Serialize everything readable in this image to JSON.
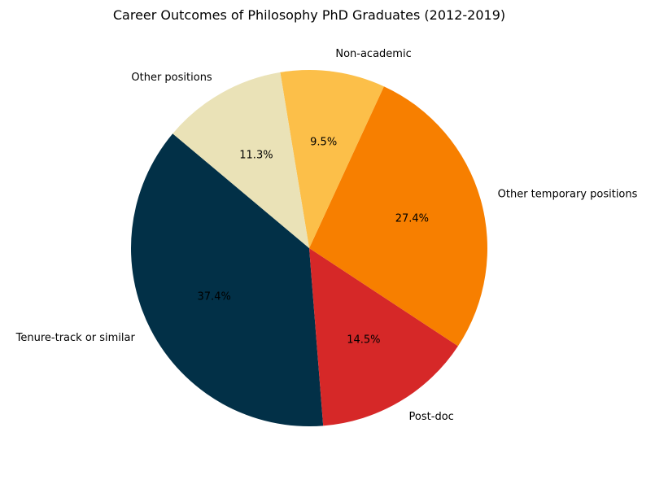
{
  "chart_data": {
    "type": "pie",
    "title": "Career Outcomes of Philosophy PhD Graduates (2012-2019)",
    "start_angle_deg": 140,
    "counterclock": true,
    "slices": [
      {
        "label": "Tenure-track or similar",
        "value": 37.4,
        "pct_label": "37.4%",
        "color": "#023047"
      },
      {
        "label": "Post-doc",
        "value": 14.5,
        "pct_label": "14.5%",
        "color": "#d62828"
      },
      {
        "label": "Other temporary positions",
        "value": 27.4,
        "pct_label": "27.4%",
        "color": "#f77f00"
      },
      {
        "label": "Non-academic",
        "value": 9.5,
        "pct_label": "9.5%",
        "color": "#fcbf49"
      },
      {
        "label": "Other positions",
        "value": 11.3,
        "pct_label": "11.3%",
        "color": "#eae2b7"
      }
    ]
  }
}
